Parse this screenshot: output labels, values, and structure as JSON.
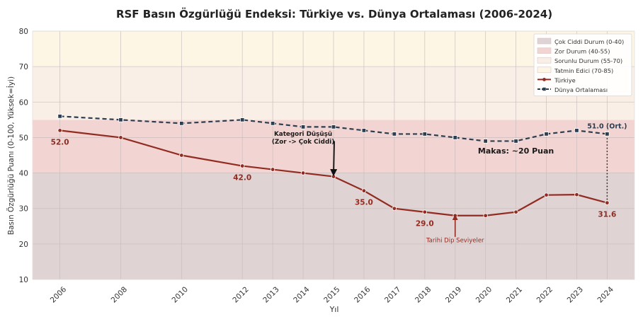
{
  "chart_data": {
    "type": "line",
    "title": "RSF Basın Özgürlüğü Endeksi: Türkiye vs. Dünya Ortalaması (2006-2024)",
    "xlabel": "Yıl",
    "ylabel": "Basın Özgürlüğü Puanı (0-100, Yüksek=İyi)",
    "ylim": [
      10,
      80
    ],
    "xlim": [
      2005.1,
      2024.9
    ],
    "yticks": [
      10,
      20,
      30,
      40,
      50,
      60,
      70,
      80
    ],
    "xticks": [
      2006,
      2008,
      2010,
      2012,
      2013,
      2014,
      2015,
      2016,
      2017,
      2018,
      2019,
      2020,
      2021,
      2022,
      2023,
      2024
    ],
    "grid": true,
    "legend_position": "top-right",
    "bands": [
      {
        "name": "Çok Ciddi Durum (0-40)",
        "from": 0,
        "to": 40,
        "color": "#dfd3d3"
      },
      {
        "name": "Zor Durum (40-55)",
        "from": 40,
        "to": 55,
        "color": "#f2d5d2"
      },
      {
        "name": "Sorunlu Durum (55-70)",
        "from": 55,
        "to": 70,
        "color": "#f9efe6"
      },
      {
        "name": "Tatmin Edici (70-85)",
        "from": 70,
        "to": 85,
        "color": "#fdf6e4"
      }
    ],
    "series": [
      {
        "name": "Türkiye",
        "color": "#922b21",
        "style": "solid",
        "marker": "circle",
        "x": [
          2006,
          2008,
          2010,
          2012,
          2013,
          2014,
          2015,
          2016,
          2017,
          2018,
          2019,
          2020,
          2021,
          2022,
          2023,
          2024
        ],
        "y": [
          52,
          50,
          45,
          42,
          41,
          40,
          39,
          35,
          30,
          29,
          28,
          28,
          29,
          33.8,
          33.9,
          31.6
        ]
      },
      {
        "name": "Dünya Ortalaması",
        "color": "#2c3e50",
        "style": "dashed",
        "marker": "square",
        "x": [
          2006,
          2008,
          2010,
          2012,
          2013,
          2014,
          2015,
          2016,
          2017,
          2018,
          2019,
          2020,
          2021,
          2022,
          2023,
          2024
        ],
        "y": [
          56,
          55,
          54,
          55,
          54,
          53,
          53,
          52,
          51,
          51,
          50,
          49,
          49,
          51,
          52,
          51
        ]
      }
    ],
    "data_labels": [
      {
        "x": 2006,
        "y": 52,
        "text": "52.0"
      },
      {
        "x": 2012,
        "y": 42,
        "text": "42.0"
      },
      {
        "x": 2016,
        "y": 35,
        "text": "35.0"
      },
      {
        "x": 2018,
        "y": 29,
        "text": "29.0"
      },
      {
        "x": 2024,
        "y": 31.6,
        "text": "31.6"
      },
      {
        "x": 2024,
        "y": 51,
        "text": "51.0 (Ort.)"
      }
    ],
    "annotations": [
      {
        "text_lines": [
          "Kategori Düşüşü",
          "(Zor -> Çok Ciddi)"
        ],
        "x": 2014,
        "y": 50.5,
        "arrow_from": [
          2015,
          49
        ],
        "arrow_to": [
          2015,
          39.5
        ],
        "color": "#1a1a1a"
      },
      {
        "text_lines": [
          "Tarihi Dip Seviyeler"
        ],
        "x": 2019,
        "y": 20.5,
        "arrow_from": [
          2019,
          22
        ],
        "arrow_to": [
          2019,
          28
        ],
        "color": "#922b21"
      },
      {
        "text_lines": [
          "Makas: ~20 Puan"
        ],
        "x": 2021,
        "y": 45.5,
        "color": "#1a1a1a"
      }
    ],
    "gap_line": {
      "x": 2024,
      "y_from": 31.6,
      "y_to": 51
    }
  }
}
